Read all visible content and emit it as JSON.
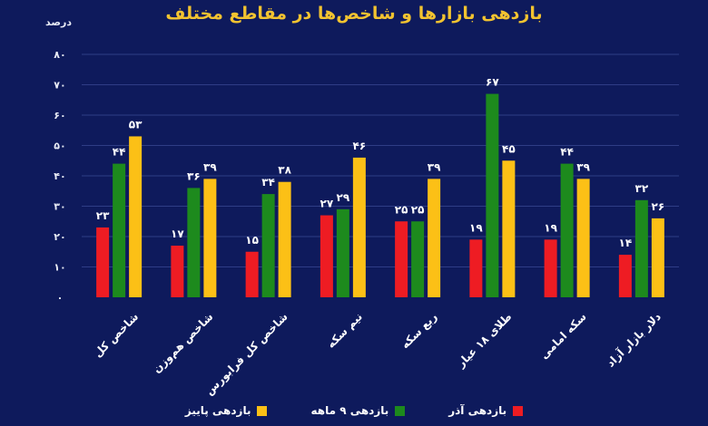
{
  "chart_data": {
    "type": "bar",
    "title": "بازدهی بازارها و شاخص‌ها در مقاطع مختلف",
    "xlabel": "",
    "ylabel": "درصد",
    "ylim": [
      0,
      80
    ],
    "yticks": [
      0,
      10,
      20,
      30,
      40,
      50,
      60,
      70,
      80
    ],
    "ytick_labels": [
      "۰",
      "۱۰",
      "۲۰",
      "۳۰",
      "۴۰",
      "۵۰",
      "۶۰",
      "۷۰",
      "۸۰"
    ],
    "grid": true,
    "legend_position": "bottom",
    "categories": [
      "شاخص کل",
      "شاخص هم‌وزن",
      "شاخص کل فرابورس",
      "نیم سکه",
      "ربع سکه",
      "طلای ۱۸ عیار",
      "سکه امامی",
      "دلار بازار آزاد"
    ],
    "series": [
      {
        "name": "بازدهی آذر",
        "color": "#ee1c23",
        "values": [
          23,
          17,
          15,
          27,
          25,
          19,
          19,
          14
        ],
        "labels": [
          "۲۳",
          "۱۷",
          "۱۵",
          "۲۷",
          "۲۵",
          "۱۹",
          "۱۹",
          "۱۴"
        ]
      },
      {
        "name": "بازدهی ۹ ماهه",
        "color": "#1d8a1d",
        "values": [
          44,
          36,
          34,
          29,
          25,
          67,
          44,
          32
        ],
        "labels": [
          "۴۴",
          "۳۶",
          "۳۴",
          "۲۹",
          "۲۵",
          "۶۷",
          "۴۴",
          "۳۲"
        ]
      },
      {
        "name": "بازدهی پاییز",
        "color": "#fcc016",
        "values": [
          53,
          39,
          38,
          46,
          39,
          45,
          39,
          26
        ],
        "labels": [
          "۵۳",
          "۳۹",
          "۳۸",
          "۴۶",
          "۳۹",
          "۴۵",
          "۳۹",
          "۲۶"
        ]
      }
    ]
  }
}
